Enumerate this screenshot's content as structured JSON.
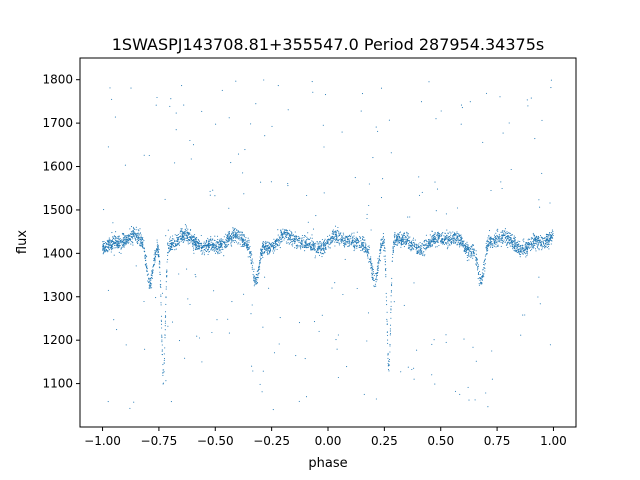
{
  "chart_data": {
    "type": "scatter",
    "title": "1SWASPJ143708.81+355547.0 Period 287954.34375s",
    "xlabel": "phase",
    "ylabel": "flux",
    "xlim": [
      -1.1,
      1.1
    ],
    "ylim": [
      1000,
      1850
    ],
    "x_ticks": [
      -1.0,
      -0.75,
      -0.5,
      -0.25,
      0.0,
      0.25,
      0.5,
      0.75,
      1.0
    ],
    "x_tick_labels": [
      "−1.00",
      "−0.75",
      "−0.50",
      "−0.25",
      "0.00",
      "0.25",
      "0.50",
      "0.75",
      "1.00"
    ],
    "y_ticks": [
      1100,
      1200,
      1300,
      1400,
      1500,
      1600,
      1700,
      1800
    ],
    "y_tick_labels": [
      "1100",
      "1200",
      "1300",
      "1400",
      "1500",
      "1600",
      "1700",
      "1800"
    ],
    "grid": false,
    "legend": "none",
    "series_color": "#1f77b4",
    "light_curve": {
      "baseline_flux": 1425,
      "scatter_spread": 22,
      "primary_eclipses": [
        {
          "phase": -0.73,
          "min_flux": 1125
        },
        {
          "phase": 0.27,
          "min_flux": 1125
        }
      ],
      "secondary_eclipses": [
        {
          "phase": -0.79,
          "min_flux": 1345
        },
        {
          "phase": -0.32,
          "min_flux": 1340
        },
        {
          "phase": 0.21,
          "min_flux": 1345
        },
        {
          "phase": 0.68,
          "min_flux": 1340
        }
      ],
      "outlier_flux_range": [
        1040,
        1800
      ]
    }
  }
}
